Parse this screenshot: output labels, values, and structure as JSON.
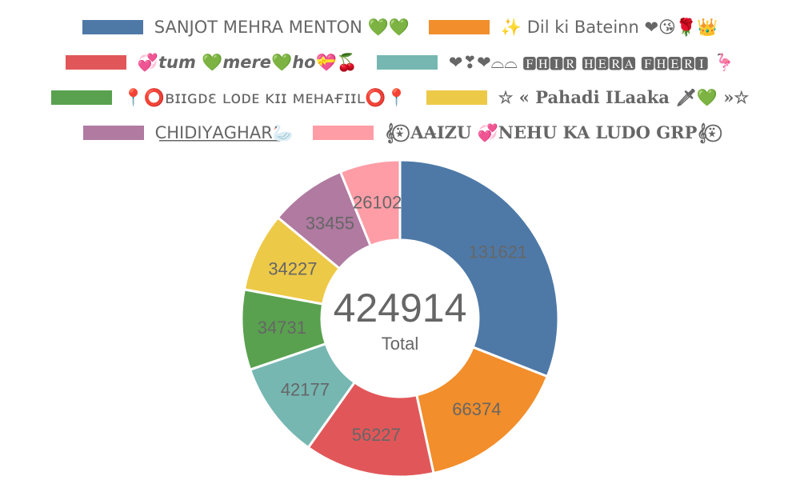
{
  "chart_data": {
    "type": "pie",
    "variant": "doughnut",
    "legend_position": "top",
    "center_value": "424914",
    "center_label": "Total",
    "series": [
      {
        "name": "SANJOT MEHRA MENTON 💚💚",
        "value": 131621,
        "color": "#4e79a7"
      },
      {
        "name": "✨ Dil ki Bateinn ❤😘🌹👑",
        "value": 66374,
        "color": "#f28e2b"
      },
      {
        "name": "💞𝙩𝙪𝙢 💚𝙢𝙚𝙧𝙚💚𝙝𝙤💝🍒",
        "value": 56227,
        "color": "#e15759"
      },
      {
        "name": "❤❣❤⌓⌓ 🅵🅷🅸🆁 🅷🅴🆁🅰 🅵🅷🅴🆁🅸 🦩",
        "value": 42177,
        "color": "#76b7b2"
      },
      {
        "name": "📍⭕ʙɪɪɢᴅɛ ʟᴏᴅᴇ ᴋɪɪ ᴍᴇʜᴀғɪɪʟ⭕📍",
        "value": 34731,
        "color": "#59a14f"
      },
      {
        "name": "☆ « Pahadi ILaaka 🗡💚 »☆",
        "value": 34227,
        "color": "#edc948"
      },
      {
        "name": "C͟H͟I͟D͟I͟Y͟A͟G͟H͟A͟R͟🦢",
        "value": 33455,
        "color": "#b07aa1"
      },
      {
        "name": "𝄞⍣⃝ AA̶IZU 💞NEHU KA LUDO GRP𝄞⍣⃝",
        "value": 26102,
        "color": "#ff9da7"
      }
    ]
  }
}
